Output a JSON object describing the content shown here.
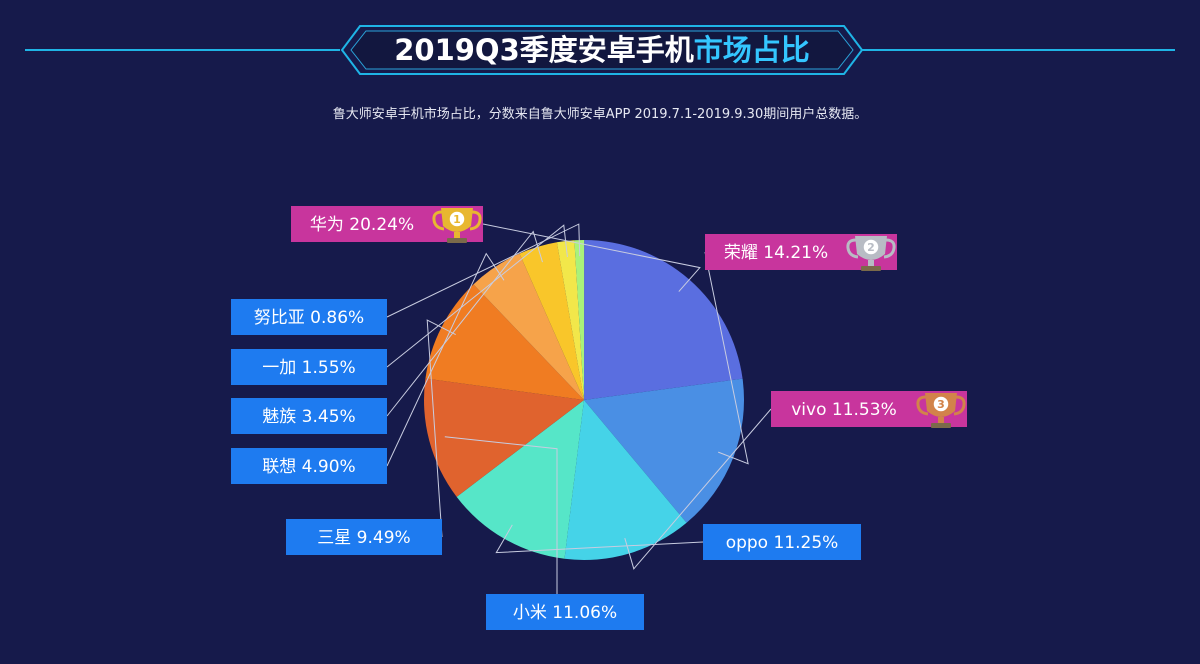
{
  "title": {
    "main": "2019Q3季度安卓手机",
    "highlight": "市场占比"
  },
  "subtitle": "鲁大师安卓手机市场占比，分数来自鲁大师安卓APP 2019.7.1-2019.9.30期间用户总数据。",
  "colors": {
    "background": "#161a4b",
    "title_line": "#1fb4e6",
    "highlight": "#34c6ff",
    "label_blue": "#1e7bf0",
    "label_magenta": "#c8359d"
  },
  "chart_data": {
    "type": "pie",
    "categories": [
      "华为",
      "荣耀",
      "vivo",
      "oppo",
      "小米",
      "三星",
      "联想",
      "魅族",
      "一加",
      "努比亚"
    ],
    "values": [
      20.24,
      14.21,
      11.53,
      11.25,
      11.06,
      9.49,
      4.9,
      3.45,
      1.55,
      0.86
    ],
    "labels": [
      "华为  20.24%",
      "荣耀  14.21%",
      "vivo  11.53%",
      "oppo  11.25%",
      "小米  11.06%",
      "三星  9.49%",
      "联想  4.90%",
      "魅族  3.45%",
      "一加  1.55%",
      "努比亚  0.86%"
    ],
    "colors": [
      "#5a6ee0",
      "#4a8fe4",
      "#45d3e8",
      "#56e6c8",
      "#e0632e",
      "#f07c22",
      "#f6a34a",
      "#f9c62a",
      "#f2e74a",
      "#a9f27a"
    ],
    "ranks": [
      "1",
      "2",
      "3"
    ],
    "rank_colors": [
      "#e8b730",
      "#b8bcc4",
      "#d2834a"
    ],
    "legend": "none"
  }
}
